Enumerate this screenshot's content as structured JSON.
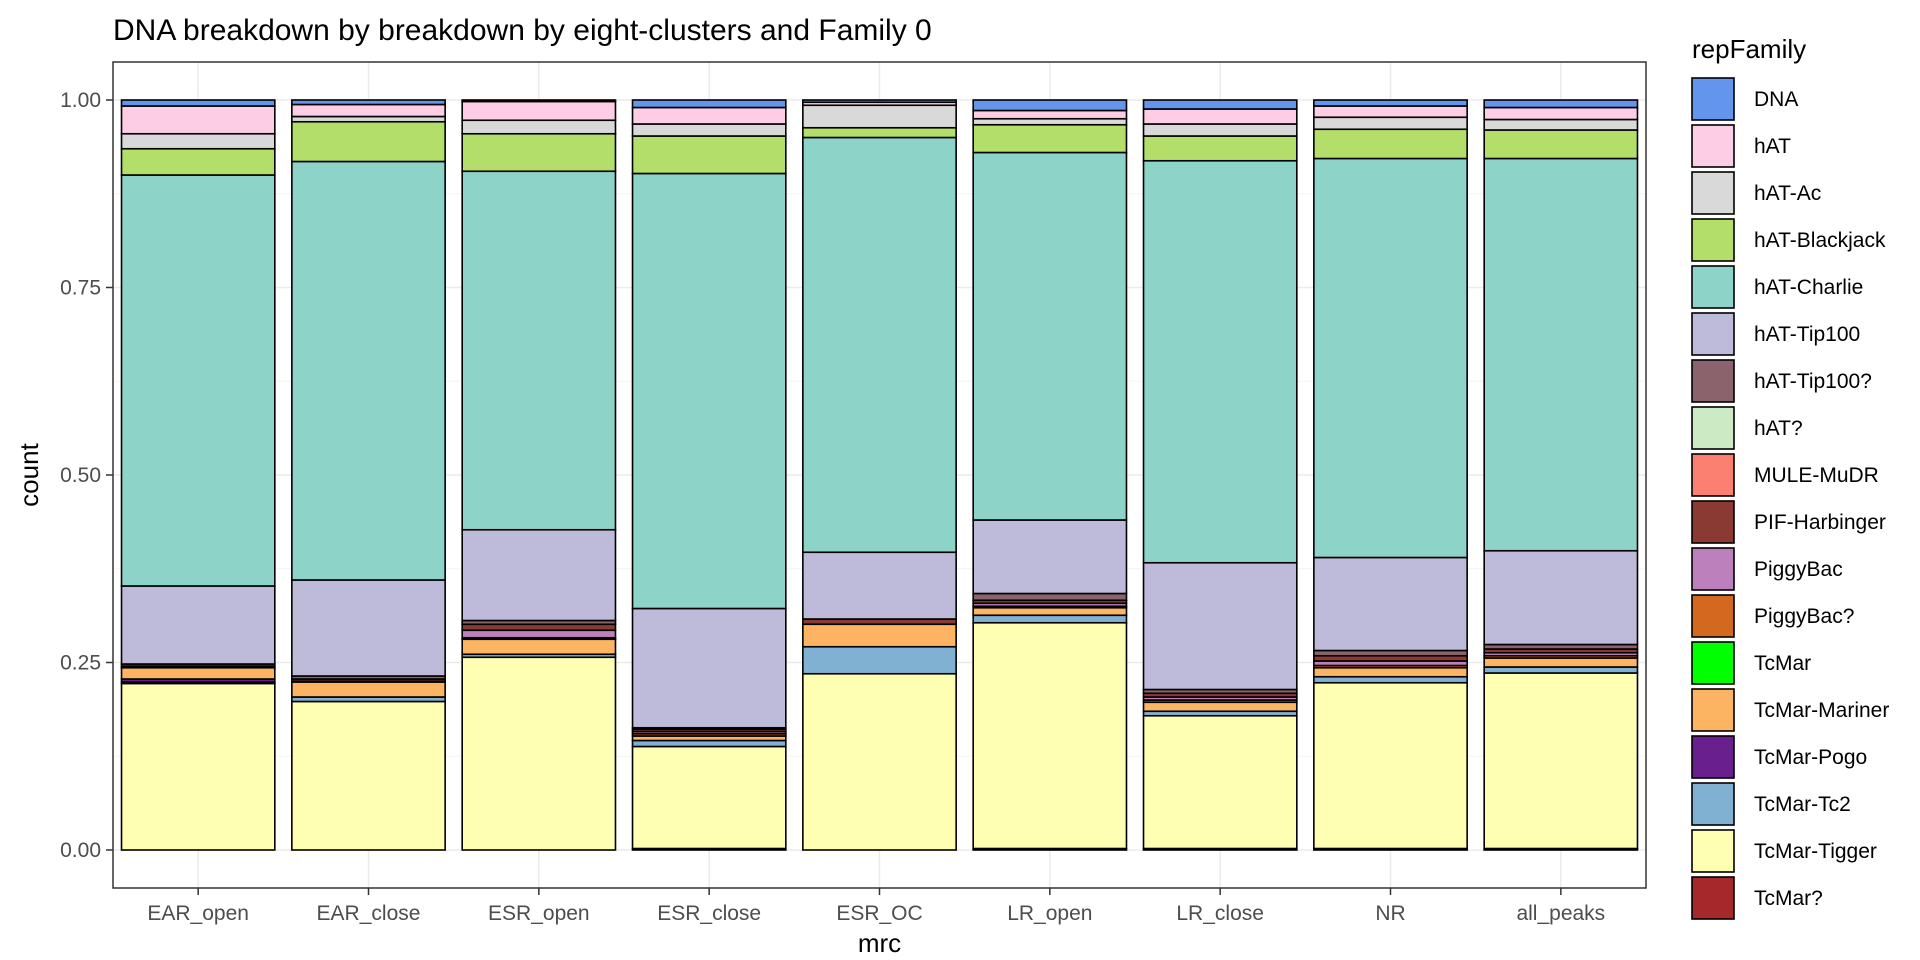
{
  "chart_data": {
    "type": "bar",
    "stacked": true,
    "title": "DNA breakdown by breakdown by eight-clusters and Family 0",
    "xlabel": "mrc",
    "ylabel": "count",
    "ylim": [
      0,
      1.05
    ],
    "yticks": [
      "0.00",
      "0.25",
      "0.50",
      "0.75",
      "1.00"
    ],
    "grid": true,
    "legend_title": "repFamily",
    "legend_position": "right",
    "categories": [
      "EAR_open",
      "EAR_close",
      "ESR_open",
      "ESR_close",
      "ESR_OC",
      "LR_open",
      "LR_close",
      "NR",
      "all_peaks"
    ],
    "series": [
      {
        "name": "TcMar?",
        "color": "#A6282B",
        "values": [
          0,
          0,
          0,
          0.002,
          0,
          0.002,
          0.002,
          0.002,
          0.002
        ]
      },
      {
        "name": "TcMar-Tigger",
        "color": "#FFFFB3",
        "values": [
          0.222,
          0.198,
          0.257,
          0.136,
          0.235,
          0.301,
          0.177,
          0.221,
          0.234
        ]
      },
      {
        "name": "TcMar-Tc2",
        "color": "#80B1D3",
        "values": [
          0.002,
          0.006,
          0.004,
          0.008,
          0.036,
          0.01,
          0.006,
          0.008,
          0.008
        ]
      },
      {
        "name": "TcMar-Pogo",
        "color": "#6A1F8E",
        "values": [
          0.004,
          0,
          0,
          0,
          0,
          0,
          0,
          0,
          0
        ]
      },
      {
        "name": "TcMar-Mariner",
        "color": "#FDB462",
        "values": [
          0.015,
          0.02,
          0.02,
          0.006,
          0.03,
          0.01,
          0.012,
          0.012,
          0.012
        ]
      },
      {
        "name": "TcMar",
        "color": "#00FF00",
        "values": [
          0,
          0,
          0,
          0,
          0,
          0,
          0,
          0,
          0
        ]
      },
      {
        "name": "PiggyBac?",
        "color": "#D2691E",
        "values": [
          0,
          0,
          0.002,
          0.003,
          0,
          0.002,
          0.003,
          0.003,
          0.003
        ]
      },
      {
        "name": "PiggyBac",
        "color": "#BC80BD",
        "values": [
          0.002,
          0.001,
          0.01,
          0.003,
          0,
          0.004,
          0.004,
          0.006,
          0.004
        ]
      },
      {
        "name": "PIF-Harbinger",
        "color": "#8B3A33",
        "values": [
          0.003,
          0.003,
          0.008,
          0.003,
          0.007,
          0.004,
          0.005,
          0.007,
          0.005
        ]
      },
      {
        "name": "MULE-MuDR",
        "color": "#FB8072",
        "values": [
          0,
          0,
          0,
          0,
          0,
          0,
          0,
          0,
          0
        ]
      },
      {
        "name": "hAT?",
        "color": "#CCEBC5",
        "values": [
          0,
          0,
          0,
          0,
          0,
          0,
          0,
          0,
          0
        ]
      },
      {
        "name": "hAT-Tip100?",
        "color": "#8B636C",
        "values": [
          0,
          0.004,
          0.005,
          0.002,
          0,
          0.009,
          0.005,
          0.007,
          0.006
        ]
      },
      {
        "name": "hAT-Tip100",
        "color": "#BEBADA",
        "values": [
          0.104,
          0.128,
          0.121,
          0.159,
          0.089,
          0.098,
          0.169,
          0.124,
          0.125
        ]
      },
      {
        "name": "hAT-Charlie",
        "color": "#8DD3C7",
        "values": [
          0.548,
          0.558,
          0.478,
          0.58,
          0.553,
          0.49,
          0.536,
          0.532,
          0.523
        ]
      },
      {
        "name": "hAT-Blackjack",
        "color": "#B3DE69",
        "values": [
          0.035,
          0.053,
          0.05,
          0.05,
          0.013,
          0.037,
          0.033,
          0.039,
          0.038
        ]
      },
      {
        "name": "hAT-Ac",
        "color": "#D9D9D9",
        "values": [
          0.02,
          0.007,
          0.018,
          0.016,
          0.03,
          0.008,
          0.016,
          0.016,
          0.014
        ]
      },
      {
        "name": "hAT",
        "color": "#FCCDE5",
        "values": [
          0.037,
          0.016,
          0.025,
          0.022,
          0.004,
          0.011,
          0.02,
          0.015,
          0.016
        ]
      },
      {
        "name": "DNA",
        "color": "#6495ED",
        "values": [
          0.008,
          0.006,
          0.002,
          0.01,
          0.003,
          0.014,
          0.012,
          0.008,
          0.01
        ]
      }
    ],
    "legend_order": [
      "DNA",
      "hAT",
      "hAT-Ac",
      "hAT-Blackjack",
      "hAT-Charlie",
      "hAT-Tip100",
      "hAT-Tip100?",
      "hAT?",
      "MULE-MuDR",
      "PIF-Harbinger",
      "PiggyBac",
      "PiggyBac?",
      "TcMar",
      "TcMar-Mariner",
      "TcMar-Pogo",
      "TcMar-Tc2",
      "TcMar-Tigger",
      "TcMar?"
    ]
  }
}
